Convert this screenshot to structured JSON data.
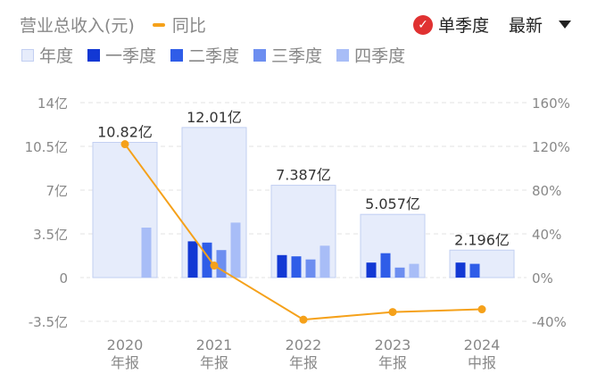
{
  "header": {
    "metric_label": "营业总收入(元)",
    "yoy_label": "同比",
    "single_quarter_label": "单季度",
    "sort_label": "最新"
  },
  "legend": [
    {
      "key": "annual",
      "label": "年度",
      "color": "#e6ecfb"
    },
    {
      "key": "q1",
      "label": "一季度",
      "color": "#1238d4"
    },
    {
      "key": "q2",
      "label": "二季度",
      "color": "#2f5de8"
    },
    {
      "key": "q3",
      "label": "三季度",
      "color": "#6d8ef0"
    },
    {
      "key": "q4",
      "label": "四季度",
      "color": "#a8bdf7"
    }
  ],
  "colors": {
    "annual_fill": "#e6ecfb",
    "annual_stroke": "#c2cff2",
    "yoy_line": "#f5a11a",
    "grid": "#e3e3e3",
    "axis_text": "#888888"
  },
  "chart_data": {
    "type": "bar",
    "categories": [
      {
        "year": "2020",
        "period": "年报"
      },
      {
        "year": "2021",
        "period": "年报"
      },
      {
        "year": "2022",
        "period": "年报"
      },
      {
        "year": "2023",
        "period": "年报"
      },
      {
        "year": "2024",
        "period": "中报"
      }
    ],
    "left_axis": {
      "ticks": [
        "14亿",
        "10.5亿",
        "7亿",
        "3.5亿",
        "0",
        "-3.5亿"
      ],
      "ylim": [
        -3.5,
        14
      ],
      "unit": "亿"
    },
    "right_axis": {
      "ticks": [
        "160%",
        "120%",
        "80%",
        "40%",
        "0%",
        "-40%"
      ],
      "ylim": [
        -40,
        160
      ],
      "unit": "%"
    },
    "annual": {
      "values": [
        10.82,
        12.01,
        7.387,
        5.057,
        2.196
      ],
      "labels": [
        "10.82亿",
        "12.01亿",
        "7.387亿",
        "5.057亿",
        "2.196亿"
      ]
    },
    "quarterly": [
      {
        "name": "一季度",
        "values": [
          null,
          2.9,
          1.8,
          1.2,
          1.2
        ]
      },
      {
        "name": "二季度",
        "values": [
          null,
          2.8,
          1.7,
          1.95,
          1.1
        ]
      },
      {
        "name": "三季度",
        "values": [
          null,
          2.2,
          1.45,
          0.8,
          null
        ]
      },
      {
        "name": "四季度",
        "values": [
          4.0,
          4.4,
          2.55,
          1.1,
          null
        ]
      }
    ],
    "yoy": {
      "name": "同比",
      "values": [
        122,
        11,
        -38.5,
        -31.5,
        -29
      ]
    },
    "grid": true
  }
}
